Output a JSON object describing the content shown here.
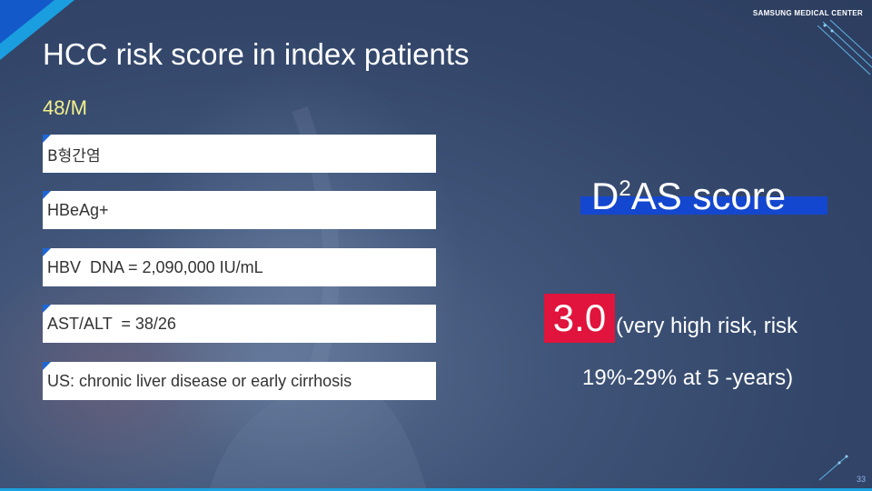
{
  "header": {
    "brand": "SAMSUNG MEDICAL CENTER",
    "title": "HCC risk score in index patients",
    "subtitle": "48/M"
  },
  "findings": [
    "B형간염",
    "HBeAg+",
    "HBV  DNA = 2,090,000 IU/mL",
    "AST/ALT  = 38/26",
    "US: chronic liver disease or early cirrhosis"
  ],
  "score": {
    "name_prefix": "D",
    "name_superscript": "2",
    "name_suffix": "AS score",
    "value": "3.0",
    "risk_line1": "(very high risk, risk",
    "risk_line2": "19%-29% at 5 -years)"
  },
  "footer": {
    "page_number": "33"
  },
  "colors": {
    "background": "#3a4e72",
    "accent_blue": "#1447cf",
    "score_red": "#e0143c",
    "subtitle_yellow": "#f3f08c",
    "cyan_line": "#1aa3e0"
  }
}
